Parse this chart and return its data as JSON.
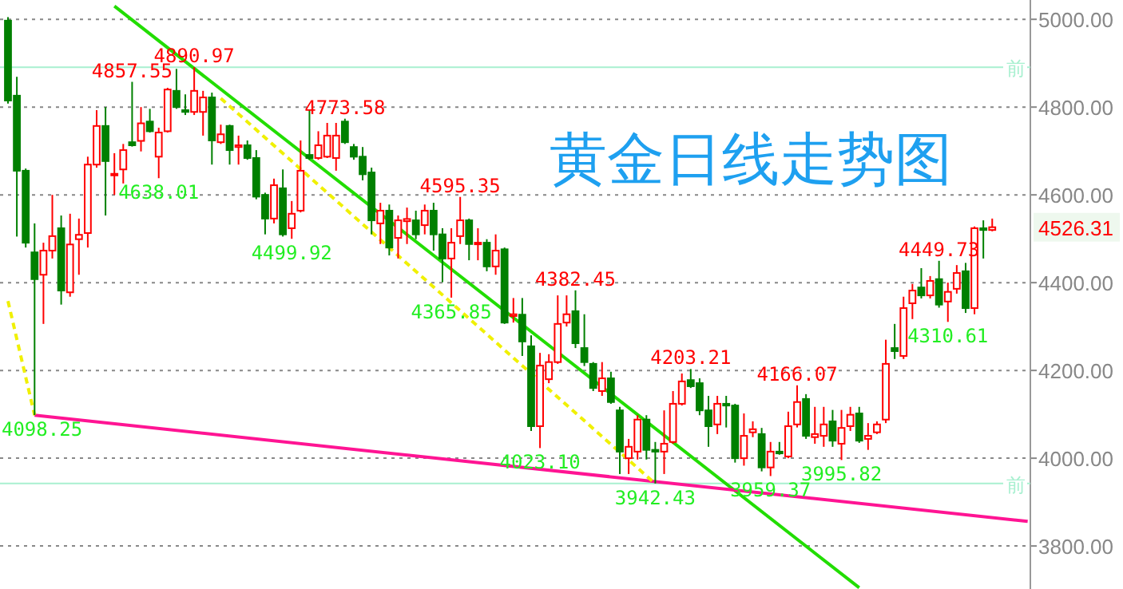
{
  "chart_data": {
    "type": "candlestick",
    "title": "黄金日线走势图",
    "categories": [
      null,
      null,
      null,
      null,
      null,
      null,
      null,
      null,
      null,
      null,
      null,
      null,
      null,
      null,
      null,
      null,
      null,
      null,
      null,
      null,
      null,
      null,
      null,
      null,
      null,
      null,
      null,
      null,
      null,
      null,
      null,
      null,
      null,
      null,
      null,
      null,
      null,
      null,
      null,
      null,
      null,
      null,
      null,
      null,
      null,
      null,
      null,
      null,
      null,
      null,
      null,
      null,
      null,
      null,
      null,
      null,
      null,
      null,
      null,
      null,
      null,
      null,
      null,
      null,
      null,
      null,
      null,
      null,
      null,
      null,
      null,
      null,
      null,
      null,
      null,
      null,
      null,
      null,
      null,
      null,
      null,
      null,
      null,
      null,
      null,
      null,
      null,
      null,
      null,
      null,
      null,
      null,
      null,
      null,
      null,
      null,
      null,
      null,
      null,
      null,
      null,
      null,
      null,
      null,
      null,
      null,
      null,
      null,
      null,
      null,
      null,
      null,
      null,
      null,
      null,
      null
    ],
    "ohlc": [
      [
        4997,
        5005,
        4808,
        4815
      ],
      [
        4826,
        4869,
        4505,
        4655
      ],
      [
        4655,
        4660,
        4480,
        4491
      ],
      [
        4469,
        4535,
        4098.25,
        4408
      ],
      [
        4418,
        4491,
        4306,
        4473
      ],
      [
        4473,
        4600,
        4455,
        4506
      ],
      [
        4524,
        4553,
        4350,
        4382
      ],
      [
        4378,
        4557,
        4368,
        4487
      ],
      [
        4499,
        4546,
        4418,
        4509
      ],
      [
        4513,
        4687,
        4480,
        4669
      ],
      [
        4669,
        4793,
        4662,
        4757
      ],
      [
        4757,
        4800,
        4553,
        4677
      ],
      [
        4645,
        4695,
        4600,
        4648
      ],
      [
        4658,
        4716,
        4626,
        4702
      ],
      [
        4720,
        4857.55,
        4710,
        4713
      ],
      [
        4723,
        4800,
        4699,
        4763
      ],
      [
        4767,
        4796,
        4742,
        4745
      ],
      [
        4687,
        4753,
        4638.01,
        4742
      ],
      [
        4745,
        4844,
        4742,
        4840
      ],
      [
        4837,
        4887,
        4796,
        4800
      ],
      [
        4793,
        4829,
        4782,
        4789
      ],
      [
        4789,
        4890.97,
        4782,
        4837
      ],
      [
        4789,
        4837,
        4735,
        4822
      ],
      [
        4822,
        4833,
        4669,
        4724
      ],
      [
        4720,
        4760,
        4716,
        4738
      ],
      [
        4757,
        4760,
        4669,
        4702
      ],
      [
        4709,
        4735,
        4669,
        4713
      ],
      [
        4713,
        4724,
        4680,
        4684
      ],
      [
        4684,
        4702,
        4590,
        4596
      ],
      [
        4600,
        4605,
        4510,
        4546
      ],
      [
        4546,
        4637,
        4535,
        4622
      ],
      [
        4615,
        4658,
        4505,
        4510
      ],
      [
        4524,
        4586,
        4499.92,
        4557
      ],
      [
        4564,
        4724,
        4560,
        4655
      ],
      [
        4691,
        4793,
        4680,
        4684
      ],
      [
        4684,
        4745,
        4680,
        4713
      ],
      [
        4687,
        4764,
        4684,
        4735
      ],
      [
        4684,
        4764,
        4655,
        4735
      ],
      [
        4767,
        4773.58,
        4716,
        4720
      ],
      [
        4709,
        4716,
        4680,
        4687
      ],
      [
        4687,
        4709,
        4633,
        4647
      ],
      [
        4651,
        4662,
        4510,
        4542
      ],
      [
        4535,
        4582,
        4488,
        4564
      ],
      [
        4564,
        4578,
        4462,
        4480
      ],
      [
        4502,
        4553,
        4455,
        4542
      ],
      [
        4540,
        4571,
        4488,
        4545
      ],
      [
        4542,
        4564,
        4499,
        4510
      ],
      [
        4531,
        4578,
        4510,
        4564
      ],
      [
        4564,
        4582,
        4473,
        4510
      ],
      [
        4510,
        4524,
        4401,
        4455
      ],
      [
        4455,
        4524,
        4365.85,
        4491
      ],
      [
        4506,
        4595.35,
        4488,
        4542
      ],
      [
        4542,
        4546,
        4451,
        4488
      ],
      [
        4488,
        4524,
        4451,
        4491
      ],
      [
        4491,
        4499,
        4426,
        4437
      ],
      [
        4437,
        4510,
        4418,
        4473
      ],
      [
        4476,
        4480,
        4306,
        4309
      ],
      [
        4324,
        4365,
        4309,
        4328
      ],
      [
        4327,
        4365,
        4233,
        4266
      ],
      [
        4255,
        4280,
        4062,
        4073
      ],
      [
        4073,
        4240,
        4023.1,
        4211
      ],
      [
        4180,
        4237,
        4171,
        4219
      ],
      [
        4219,
        4371,
        4215,
        4306
      ],
      [
        4309,
        4371,
        4300,
        4328
      ],
      [
        4335,
        4382.45,
        4251,
        4262
      ],
      [
        4251,
        4328,
        4210,
        4219
      ],
      [
        4215,
        4219,
        4153,
        4160
      ],
      [
        4153,
        4219,
        4142,
        4182
      ],
      [
        4182,
        4197,
        4124,
        4128
      ],
      [
        4109,
        4117,
        3964,
        4015
      ],
      [
        4000,
        4044,
        3964,
        4026
      ],
      [
        4015,
        4098,
        3997,
        4088
      ],
      [
        4088,
        4098,
        3997,
        4019
      ],
      [
        4019,
        4037,
        3942.43,
        4015
      ],
      [
        4015,
        4109,
        3964,
        4033
      ],
      [
        4037,
        4153,
        4033,
        4124
      ],
      [
        4124,
        4193,
        4120,
        4175
      ],
      [
        4178,
        4203.21,
        4160,
        4164
      ],
      [
        4171,
        4182,
        4098,
        4109
      ],
      [
        4109,
        4142,
        4026,
        4073
      ],
      [
        4077,
        4142,
        4055,
        4124
      ],
      [
        4124,
        4142,
        4070,
        4120
      ],
      [
        4120,
        4124,
        3990,
        4000
      ],
      [
        4000,
        4102,
        3983,
        4051
      ],
      [
        4059,
        4084,
        4048,
        4066
      ],
      [
        4055,
        4069,
        3970,
        3979
      ],
      [
        3979,
        4037,
        3959.37,
        4015
      ],
      [
        4015,
        4037,
        4008,
        4011
      ],
      [
        4004,
        4106,
        4000,
        4073
      ],
      [
        4077,
        4166.07,
        4070,
        4128
      ],
      [
        4135,
        4146,
        4044,
        4051
      ],
      [
        4048,
        4117,
        4033,
        4055
      ],
      [
        4051,
        4117,
        4026,
        4077
      ],
      [
        4084,
        4110,
        4026,
        4040
      ],
      [
        4033,
        4110,
        3995.82,
        4069
      ],
      [
        4073,
        4117,
        4062,
        4099
      ],
      [
        4102,
        4117,
        4035,
        4040
      ],
      [
        4044,
        4080,
        4019,
        4051
      ],
      [
        4059,
        4084,
        4055,
        4077
      ],
      [
        4088,
        4270,
        4080,
        4215
      ],
      [
        4251,
        4306,
        4226,
        4244
      ],
      [
        4233,
        4368,
        4226,
        4342
      ],
      [
        4353,
        4397,
        4317,
        4382
      ],
      [
        4389,
        4433,
        4364,
        4371
      ],
      [
        4371,
        4415,
        4364,
        4404
      ],
      [
        4408,
        4449.73,
        4343,
        4350
      ],
      [
        4357,
        4400,
        4310.61,
        4379
      ],
      [
        4386,
        4440,
        4375,
        4422
      ],
      [
        4426,
        4445,
        4331,
        4342
      ],
      [
        4342,
        4528,
        4328,
        4524
      ],
      [
        4524,
        4542,
        4455,
        4520
      ],
      [
        4520,
        4546,
        4517,
        4526.31
      ],
      null,
      null,
      null,
      null
    ],
    "series": [
      {
        "type": "line",
        "color": "#22dd00",
        "values": [
          null,
          null,
          null,
          null,
          null,
          null,
          null,
          null,
          null,
          null,
          null,
          null,
          5030,
          null,
          null,
          null,
          null,
          null,
          null,
          null,
          null,
          null,
          null,
          null,
          null,
          null,
          null,
          null,
          null,
          null,
          null,
          null,
          null,
          null,
          null,
          null,
          null,
          null,
          null,
          null,
          null,
          null,
          null,
          null,
          null,
          null,
          null,
          null,
          null,
          null,
          null,
          null,
          null,
          null,
          null,
          null,
          null,
          null,
          null,
          null,
          null,
          null,
          null,
          null,
          null,
          null,
          null,
          null,
          null,
          null,
          null,
          null,
          null,
          null,
          null,
          null,
          null,
          null,
          null,
          null,
          null,
          null,
          null,
          null,
          null,
          null,
          null,
          null,
          null,
          null,
          null,
          null,
          null,
          null,
          null,
          null,
          3705,
          null,
          null,
          null,
          null,
          null,
          null,
          null,
          null,
          null,
          null,
          null,
          null,
          null,
          null,
          null,
          null,
          null,
          null,
          null
        ]
      },
      {
        "type": "line",
        "color": "#ff1493",
        "values": [
          null,
          null,
          null,
          4098,
          null,
          null,
          null,
          null,
          null,
          null,
          null,
          null,
          null,
          null,
          null,
          null,
          null,
          null,
          null,
          null,
          null,
          null,
          null,
          null,
          null,
          null,
          null,
          null,
          null,
          null,
          null,
          null,
          null,
          null,
          null,
          null,
          null,
          null,
          null,
          null,
          null,
          null,
          null,
          null,
          null,
          null,
          null,
          null,
          null,
          null,
          null,
          null,
          null,
          null,
          null,
          null,
          null,
          null,
          null,
          null,
          null,
          null,
          null,
          null,
          null,
          null,
          null,
          null,
          null,
          null,
          null,
          null,
          null,
          null,
          null,
          null,
          null,
          null,
          null,
          null,
          null,
          null,
          null,
          null,
          null,
          null,
          null,
          null,
          null,
          null,
          null,
          null,
          null,
          null,
          null,
          null,
          null,
          null,
          null,
          null,
          null,
          null,
          null,
          null,
          null,
          null,
          null,
          null,
          null,
          null,
          null,
          null,
          null,
          null,
          null,
          3856
        ]
      },
      {
        "type": "line",
        "color": "#f0f000",
        "line_style": "dashed",
        "values": [
          4358,
          null,
          null,
          4098,
          null,
          null,
          null,
          null,
          null,
          null,
          null,
          null,
          null,
          null,
          null,
          null,
          null,
          null,
          null,
          null,
          null,
          null,
          null,
          null,
          null,
          null,
          null,
          null,
          null,
          null,
          null,
          null,
          null,
          null,
          null,
          null,
          null,
          null,
          null,
          null,
          null,
          null,
          null,
          null,
          null,
          null,
          null,
          null,
          null,
          null,
          null,
          null,
          null,
          null,
          null,
          null,
          null,
          null,
          null,
          null,
          null,
          null,
          null,
          null,
          null,
          null,
          null,
          null,
          null,
          null,
          null,
          null,
          null,
          null,
          null,
          null,
          null,
          null,
          null,
          null,
          null,
          null,
          null,
          null,
          null,
          null,
          null,
          null,
          null,
          null,
          null,
          null,
          null,
          null,
          null,
          null,
          null,
          null,
          null,
          null,
          null,
          null,
          null,
          null,
          null,
          null,
          null,
          null,
          null,
          null,
          null,
          null,
          null,
          null,
          null,
          null
        ]
      },
      {
        "type": "line",
        "color": "#f0f000",
        "line_style": "dashed",
        "values": [
          null,
          null,
          null,
          null,
          null,
          null,
          null,
          null,
          null,
          null,
          null,
          null,
          null,
          null,
          null,
          null,
          null,
          null,
          null,
          null,
          null,
          null,
          null,
          null,
          4820,
          null,
          null,
          null,
          null,
          null,
          null,
          null,
          null,
          null,
          null,
          null,
          null,
          null,
          null,
          null,
          null,
          null,
          null,
          null,
          null,
          null,
          null,
          null,
          null,
          null,
          null,
          null,
          null,
          null,
          null,
          null,
          null,
          null,
          null,
          null,
          null,
          null,
          null,
          null,
          null,
          null,
          null,
          null,
          null,
          null,
          null,
          null,
          null,
          3942,
          null,
          null,
          null,
          null,
          null,
          null,
          null,
          null,
          null,
          null,
          null,
          null,
          null,
          null,
          null,
          null,
          null,
          null,
          null,
          null,
          null,
          null,
          null,
          null,
          null,
          null,
          null,
          null,
          null,
          null,
          null,
          null,
          null,
          null,
          null,
          null,
          null,
          null,
          null,
          null,
          null,
          null
        ]
      }
    ],
    "ref_lines": [
      {
        "axis": "y",
        "value": 4890.97,
        "label": "前",
        "color": "#a8f0d0"
      },
      {
        "axis": "y",
        "value": 3942.43,
        "label": "前",
        "color": "#a8f0d0"
      }
    ],
    "annotations": [
      {
        "text": "4857.55",
        "y": 4857.55
      },
      {
        "text": "4890.97",
        "y": 4890.97
      },
      {
        "text": "4638.01",
        "y": 4638.01
      },
      {
        "text": "4773.58",
        "y": 4773.58
      },
      {
        "text": "4499.92",
        "y": 4499.92
      },
      {
        "text": "4595.35",
        "y": 4595.35
      },
      {
        "text": "4365.85",
        "y": 4365.85
      },
      {
        "text": "4382.45",
        "y": 4382.45
      },
      {
        "text": "4098.25",
        "y": 4098.25
      },
      {
        "text": "4023.10",
        "y": 4023.1
      },
      {
        "text": "4203.21",
        "y": 4203.21
      },
      {
        "text": "4166.07",
        "y": 4166.07
      },
      {
        "text": "3942.43",
        "y": 3942.43
      },
      {
        "text": "3959.37",
        "y": 3959.37
      },
      {
        "text": "3995.82",
        "y": 3995.82
      },
      {
        "text": "4449.73",
        "y": 4449.73
      },
      {
        "text": "4310.61",
        "y": 4310.61
      },
      "4526.31"
    ],
    "ylim": [
      3702,
      5044
    ],
    "yticks": [
      {
        "value": 3800,
        "label": "3800.00"
      },
      {
        "value": 4000,
        "label": "4000.00"
      },
      {
        "value": 4200,
        "label": "4200.00"
      },
      {
        "value": 4400,
        "label": "4400.00"
      },
      {
        "value": 4600,
        "label": "4600.00"
      },
      {
        "value": 4800,
        "label": "4800.00"
      },
      {
        "value": 5000,
        "label": "5000.00"
      }
    ],
    "grid": "y"
  }
}
